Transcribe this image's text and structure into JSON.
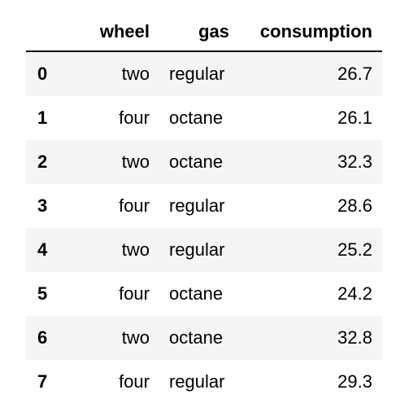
{
  "table": {
    "columns": [
      "",
      "wheel",
      "gas",
      "consumption"
    ],
    "rows": [
      {
        "index": "0",
        "wheel": "two",
        "gas": "regular",
        "consumption": "26.7"
      },
      {
        "index": "1",
        "wheel": "four",
        "gas": "octane",
        "consumption": "26.1"
      },
      {
        "index": "2",
        "wheel": "two",
        "gas": "octane",
        "consumption": "32.3"
      },
      {
        "index": "3",
        "wheel": "four",
        "gas": "regular",
        "consumption": "28.6"
      },
      {
        "index": "4",
        "wheel": "two",
        "gas": "regular",
        "consumption": "25.2"
      },
      {
        "index": "5",
        "wheel": "four",
        "gas": "octane",
        "consumption": "24.2"
      },
      {
        "index": "6",
        "wheel": "two",
        "gas": "octane",
        "consumption": "32.8"
      },
      {
        "index": "7",
        "wheel": "four",
        "gas": "regular",
        "consumption": "29.3"
      }
    ]
  },
  "colors": {
    "row_stripe": "#f5f5f5",
    "header_rule": "#000000"
  }
}
